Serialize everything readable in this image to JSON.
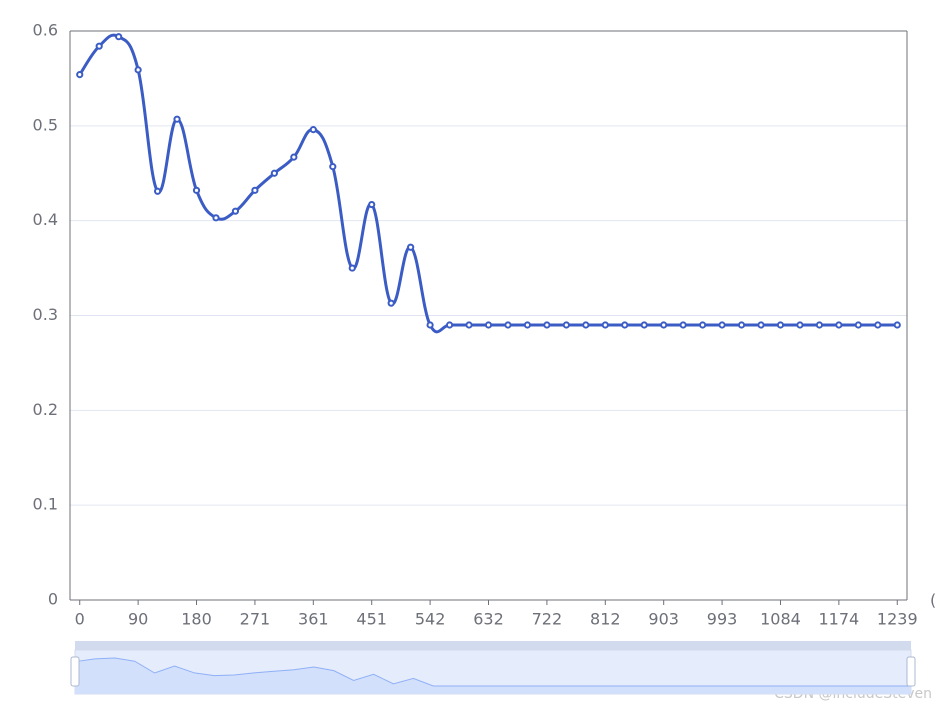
{
  "chart_data": {
    "type": "line",
    "xlabel": "(",
    "categories": [
      "0",
      null,
      null,
      "90",
      null,
      null,
      "180",
      null,
      null,
      "271",
      null,
      null,
      "361",
      null,
      null,
      "451",
      null,
      null,
      "542",
      null,
      null,
      "632",
      null,
      null,
      "722",
      null,
      null,
      "812",
      null,
      null,
      "903",
      null,
      null,
      "993",
      null,
      null,
      "1084",
      null,
      null,
      "1174",
      null,
      null,
      "1239"
    ],
    "series": [
      {
        "color": "#3b5cc4",
        "values": [
          0.554,
          0.584,
          0.594,
          0.559,
          0.431,
          0.507,
          0.432,
          0.403,
          0.41,
          0.432,
          0.45,
          0.467,
          0.496,
          0.457,
          0.35,
          0.417,
          0.313,
          0.372,
          0.29,
          0.29,
          0.29,
          0.29,
          0.29,
          0.29,
          0.29,
          0.29,
          0.29,
          0.29,
          0.29,
          0.29,
          0.29,
          0.29,
          0.29,
          0.29,
          0.29,
          0.29,
          0.29,
          0.29,
          0.29,
          0.29,
          0.29,
          0.29,
          0.29
        ]
      }
    ],
    "ylim": [
      0,
      0.6
    ],
    "yticks": [
      0,
      0.1,
      0.2,
      0.3,
      0.4,
      0.5,
      0.6
    ],
    "grid": true,
    "smooth": true,
    "watermark": "CSDN @includeSteven"
  }
}
